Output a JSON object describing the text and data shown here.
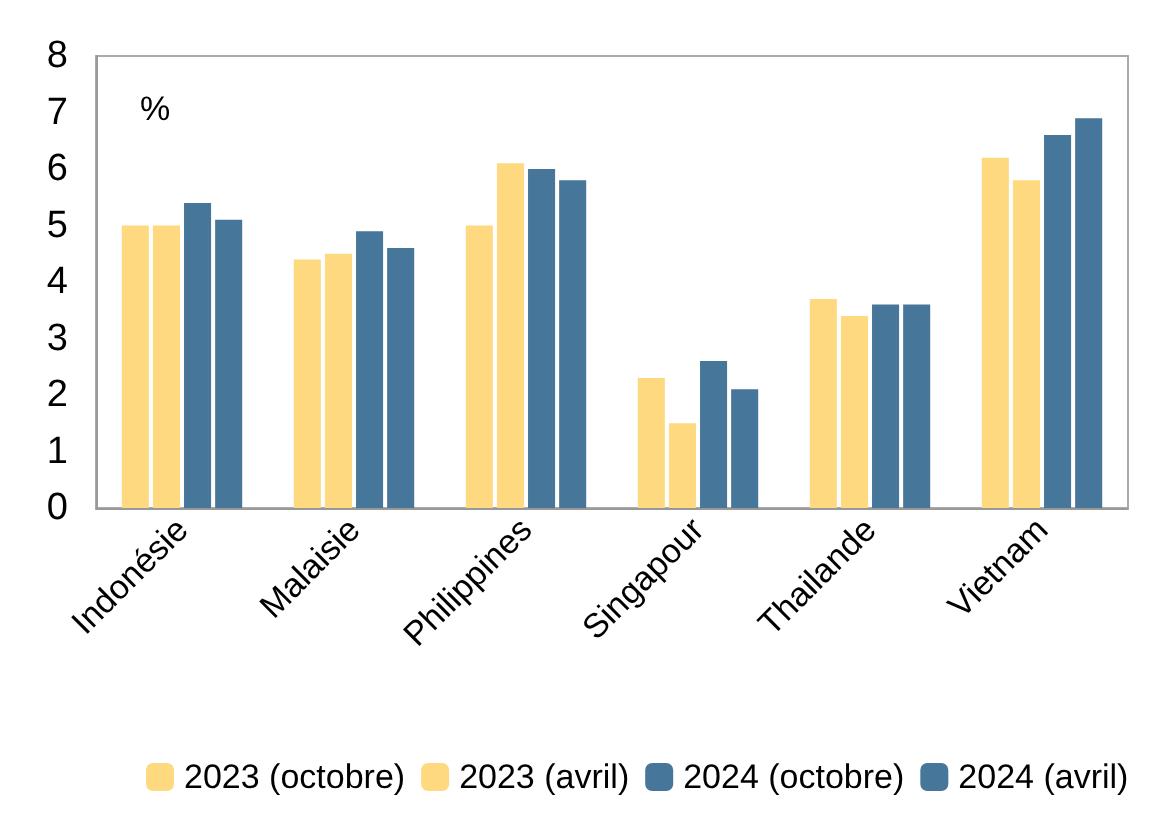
{
  "chart_data": {
    "type": "bar",
    "ylabel": "%",
    "categories": [
      "Indonésie",
      "Malaisie",
      "Philippines",
      "Singapour",
      "Thailande",
      "Vietnam"
    ],
    "series": [
      {
        "name": "2023 (octobre)",
        "color": "#ffd97f",
        "values": [
          5.0,
          4.4,
          5.0,
          2.3,
          3.7,
          6.2
        ]
      },
      {
        "name": "2023 (avril)",
        "color": "#ffd97f",
        "values": [
          5.0,
          4.5,
          6.1,
          1.5,
          3.4,
          5.8
        ]
      },
      {
        "name": "2024 (octobre)",
        "color": "#46769a",
        "values": [
          5.4,
          4.9,
          6.0,
          2.6,
          3.6,
          6.6
        ]
      },
      {
        "name": "2024 (avril)",
        "color": "#46769a",
        "values": [
          5.1,
          4.6,
          5.8,
          2.1,
          3.6,
          6.9
        ]
      }
    ],
    "ylim": [
      0,
      8
    ],
    "yticks": [
      0,
      1,
      2,
      3,
      4,
      5,
      6,
      7,
      8
    ],
    "grid": false,
    "legend": "bottom"
  }
}
